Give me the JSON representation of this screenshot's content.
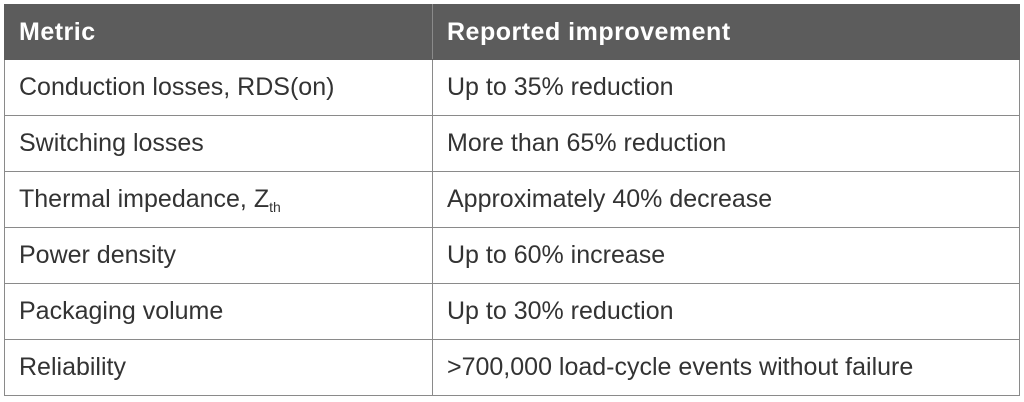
{
  "table": {
    "header": [
      "Metric",
      "Reported improvement"
    ],
    "rows": [
      [
        "Conduction losses, RDS(on)",
        "Up to 35% reduction"
      ],
      [
        "Switching losses",
        "More than 65% reduction"
      ],
      [
        {
          "text": "Thermal impedance, Z",
          "subscript": "th"
        },
        "Approximately 40% decrease"
      ],
      [
        "Power density",
        "Up to 60% increase"
      ],
      [
        "Packaging volume",
        "Up to 30% reduction"
      ],
      [
        "Reliability",
        ">700,000 load-cycle events without failure"
      ]
    ]
  }
}
